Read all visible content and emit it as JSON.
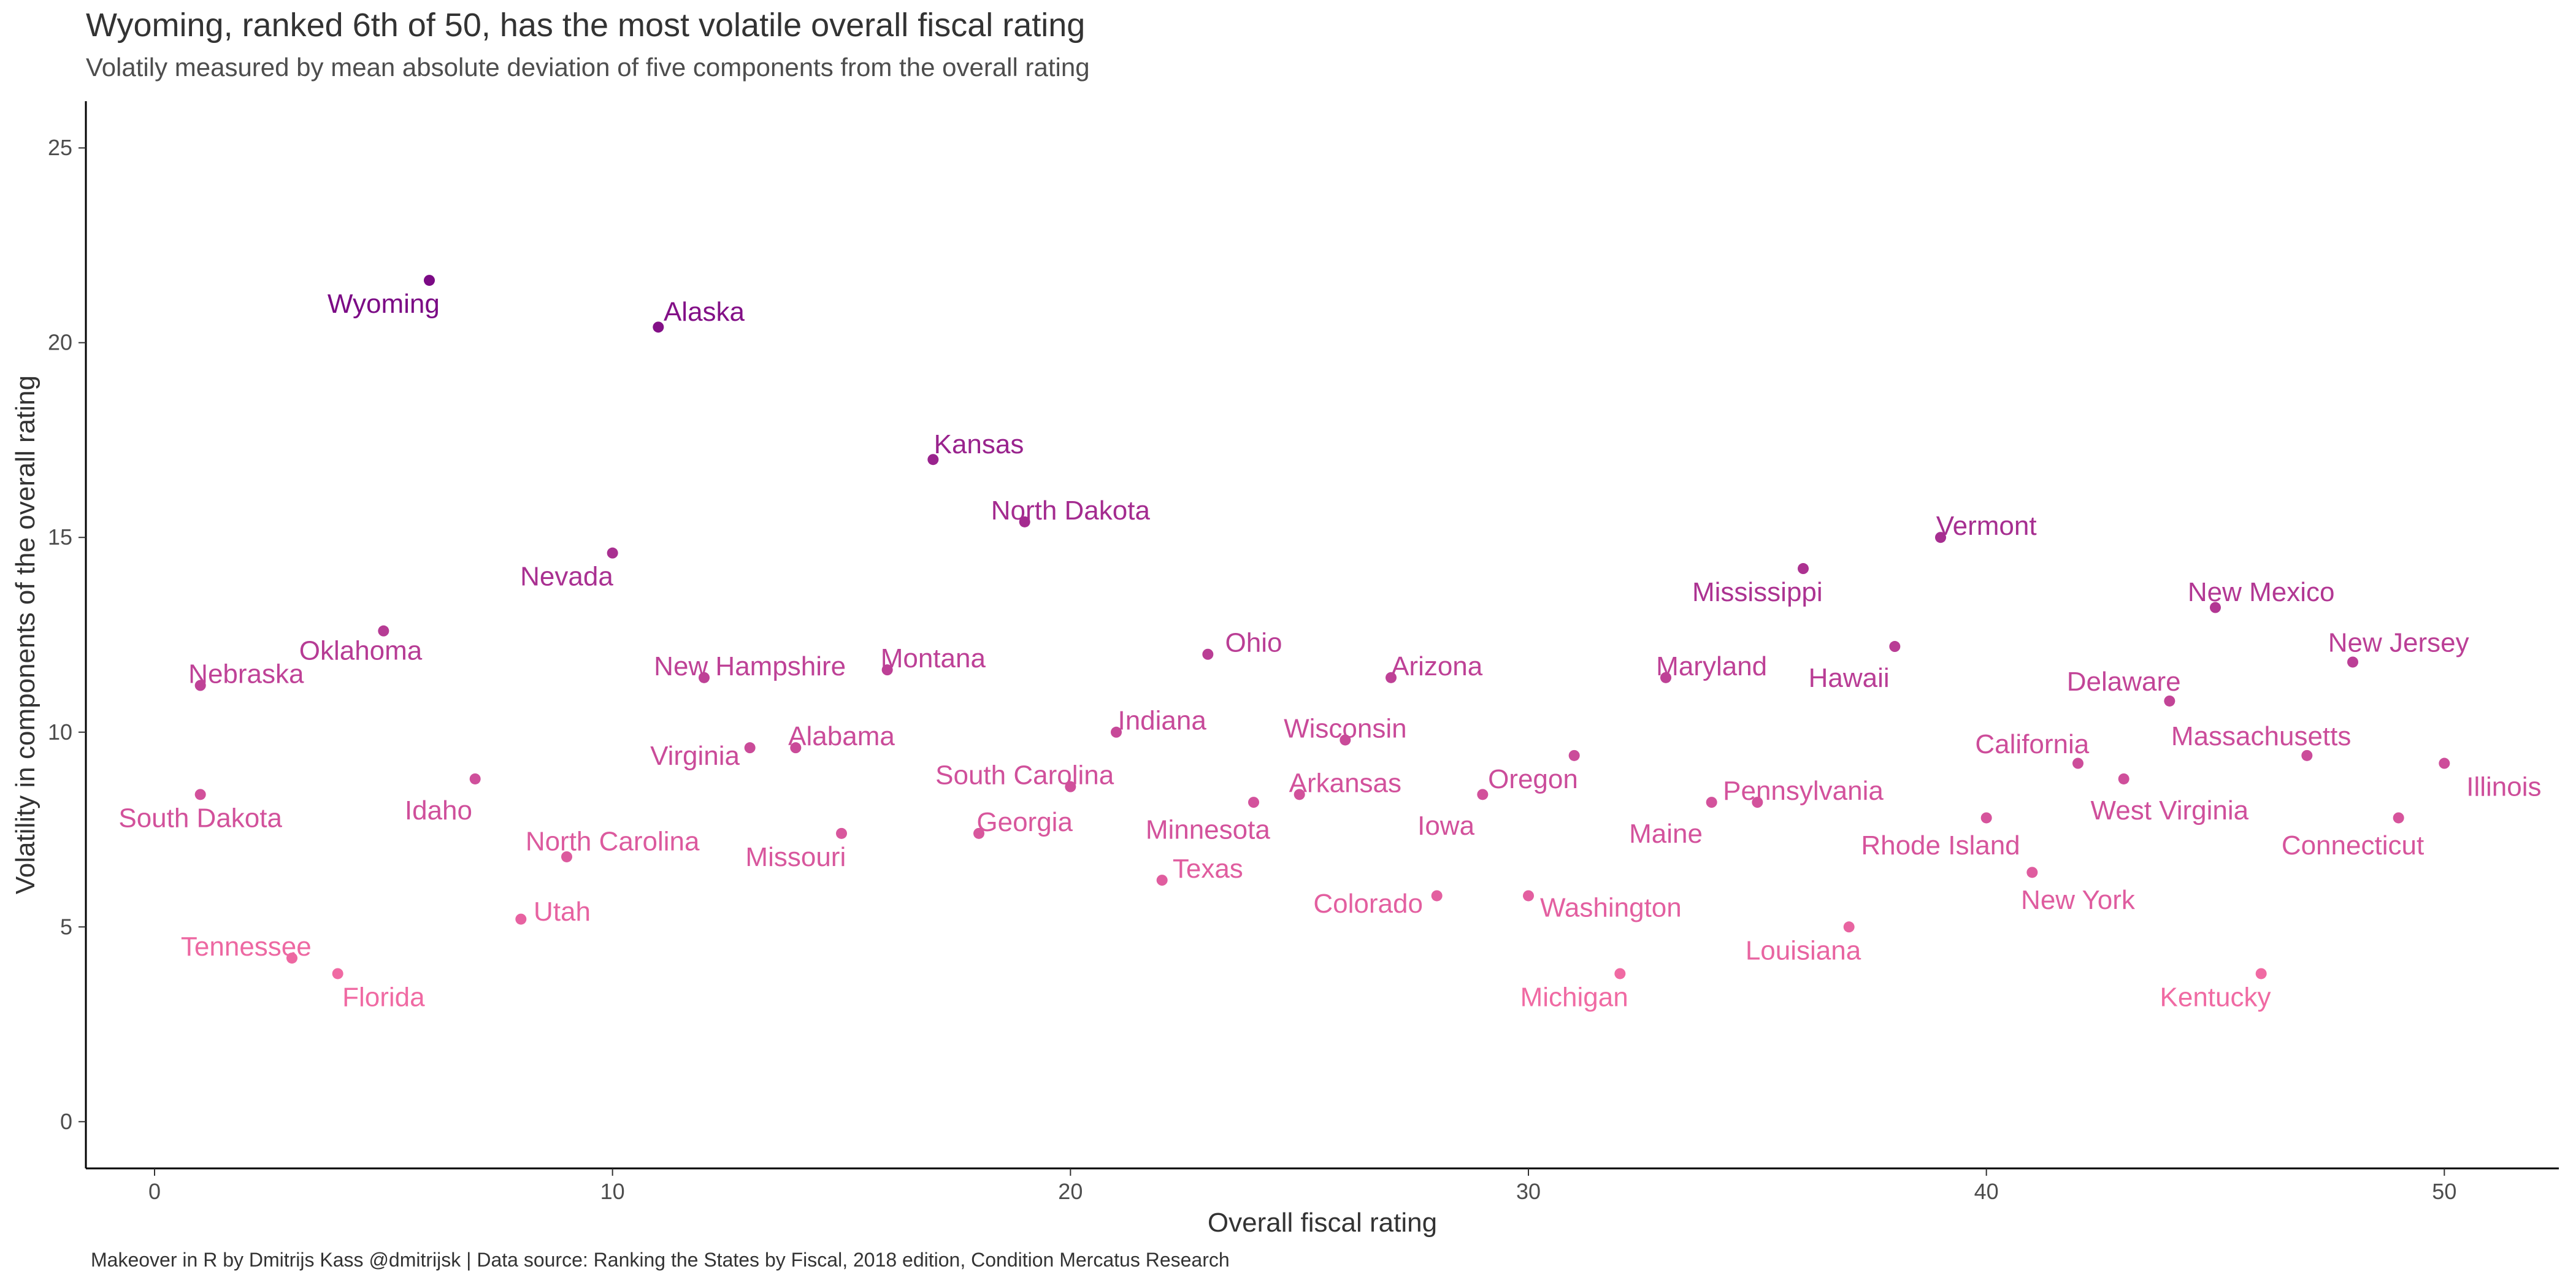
{
  "title": "Wyoming, ranked 6th of 50, has the most volatile overall fiscal rating",
  "subtitle": "Volatily measured by mean absolute deviation of five components from the overall rating",
  "caption": "Makeover in R by Dmitrijs Kass @dmitrijsk | Data source: Ranking the States by Fiscal, 2018 edition, Condition Mercatus Research",
  "colors": {
    "low": "#f06aa3",
    "high": "#7b0a85"
  },
  "chart_data": {
    "type": "scatter",
    "xlabel": "Overall fiscal rating",
    "ylabel": "Volatility in components of the overall rating",
    "xlim": [
      -1.5,
      52.5
    ],
    "ylim": [
      -1.2,
      26.2
    ],
    "xticks": [
      0,
      10,
      20,
      30,
      40,
      50
    ],
    "yticks": [
      0,
      5,
      10,
      15,
      20,
      25
    ],
    "grid": false,
    "legend": "none",
    "points": [
      {
        "label": "South Dakota",
        "x": 1,
        "y": 8.4,
        "lx": 1,
        "ly": 7.8,
        "anchor": "middle"
      },
      {
        "label": "Nebraska",
        "x": 1,
        "y": 11.2,
        "lx": 2,
        "ly": 11.5,
        "anchor": "middle"
      },
      {
        "label": "Tennessee",
        "x": 3,
        "y": 4.2,
        "lx": 2,
        "ly": 4.5,
        "anchor": "middle"
      },
      {
        "label": "Florida",
        "x": 4,
        "y": 3.8,
        "lx": 5,
        "ly": 3.2,
        "anchor": "middle"
      },
      {
        "label": "Oklahoma",
        "x": 5,
        "y": 12.6,
        "lx": 4.5,
        "ly": 12.1,
        "anchor": "middle"
      },
      {
        "label": "Wyoming",
        "x": 6,
        "y": 21.6,
        "lx": 5,
        "ly": 21.0,
        "anchor": "middle"
      },
      {
        "label": "Idaho",
        "x": 7,
        "y": 8.8,
        "lx": 6.2,
        "ly": 8.0,
        "anchor": "middle"
      },
      {
        "label": "Utah",
        "x": 8,
        "y": 5.2,
        "lx": 8.9,
        "ly": 5.4,
        "anchor": "middle"
      },
      {
        "label": "North Carolina",
        "x": 9,
        "y": 6.8,
        "lx": 10,
        "ly": 7.2,
        "anchor": "middle"
      },
      {
        "label": "Nevada",
        "x": 10,
        "y": 14.6,
        "lx": 9,
        "ly": 14.0,
        "anchor": "middle"
      },
      {
        "label": "Alaska",
        "x": 11,
        "y": 20.4,
        "lx": 12,
        "ly": 20.8,
        "anchor": "middle"
      },
      {
        "label": "New Hampshire",
        "x": 12,
        "y": 11.4,
        "lx": 13,
        "ly": 11.7,
        "anchor": "middle"
      },
      {
        "label": "Virginia",
        "x": 13,
        "y": 9.6,
        "lx": 11.8,
        "ly": 9.4,
        "anchor": "middle"
      },
      {
        "label": "Alabama",
        "x": 14,
        "y": 9.6,
        "lx": 15,
        "ly": 9.9,
        "anchor": "middle"
      },
      {
        "label": "Missouri",
        "x": 15,
        "y": 7.4,
        "lx": 14,
        "ly": 6.8,
        "anchor": "middle"
      },
      {
        "label": "Montana",
        "x": 16,
        "y": 11.6,
        "lx": 17,
        "ly": 11.9,
        "anchor": "middle"
      },
      {
        "label": "Kansas",
        "x": 17,
        "y": 17.0,
        "lx": 18,
        "ly": 17.4,
        "anchor": "middle"
      },
      {
        "label": "Georgia",
        "x": 18,
        "y": 7.4,
        "lx": 19,
        "ly": 7.7,
        "anchor": "middle"
      },
      {
        "label": "North Dakota",
        "x": 19,
        "y": 15.4,
        "lx": 20,
        "ly": 15.7,
        "anchor": "middle"
      },
      {
        "label": "South Carolina",
        "x": 20,
        "y": 8.6,
        "lx": 19,
        "ly": 8.9,
        "anchor": "middle"
      },
      {
        "label": "Indiana",
        "x": 21,
        "y": 10.0,
        "lx": 22,
        "ly": 10.3,
        "anchor": "middle"
      },
      {
        "label": "Texas",
        "x": 22,
        "y": 6.2,
        "lx": 23,
        "ly": 6.5,
        "anchor": "middle"
      },
      {
        "label": "Ohio",
        "x": 23,
        "y": 12.0,
        "lx": 24,
        "ly": 12.3,
        "anchor": "middle"
      },
      {
        "label": "Minnesota",
        "x": 24,
        "y": 8.2,
        "lx": 23,
        "ly": 7.5,
        "anchor": "middle"
      },
      {
        "label": "Arkansas",
        "x": 25,
        "y": 8.4,
        "lx": 26,
        "ly": 8.7,
        "anchor": "middle"
      },
      {
        "label": "Wisconsin",
        "x": 26,
        "y": 9.8,
        "lx": 26,
        "ly": 10.1,
        "anchor": "middle"
      },
      {
        "label": "Arizona",
        "x": 27,
        "y": 11.4,
        "lx": 28,
        "ly": 11.7,
        "anchor": "middle"
      },
      {
        "label": "Colorado",
        "x": 28,
        "y": 5.8,
        "lx": 26.5,
        "ly": 5.6,
        "anchor": "middle"
      },
      {
        "label": "Iowa",
        "x": 29,
        "y": 8.4,
        "lx": 28.2,
        "ly": 7.6,
        "anchor": "middle"
      },
      {
        "label": "Washington",
        "x": 30,
        "y": 5.8,
        "lx": 31.8,
        "ly": 5.5,
        "anchor": "middle"
      },
      {
        "label": "Oregon",
        "x": 31,
        "y": 9.4,
        "lx": 30.1,
        "ly": 8.8,
        "anchor": "middle"
      },
      {
        "label": "Michigan",
        "x": 32,
        "y": 3.8,
        "lx": 31,
        "ly": 3.2,
        "anchor": "middle"
      },
      {
        "label": "Maryland",
        "x": 33,
        "y": 11.4,
        "lx": 34,
        "ly": 11.7,
        "anchor": "middle"
      },
      {
        "label": "Maine",
        "x": 34,
        "y": 8.2,
        "lx": 33,
        "ly": 7.4,
        "anchor": "middle"
      },
      {
        "label": "Pennsylvania",
        "x": 35,
        "y": 8.2,
        "lx": 36,
        "ly": 8.5,
        "anchor": "middle"
      },
      {
        "label": "Mississippi",
        "x": 36,
        "y": 14.2,
        "lx": 35,
        "ly": 13.6,
        "anchor": "middle"
      },
      {
        "label": "Louisiana",
        "x": 37,
        "y": 5.0,
        "lx": 36,
        "ly": 4.4,
        "anchor": "middle"
      },
      {
        "label": "Hawaii",
        "x": 38,
        "y": 12.2,
        "lx": 37,
        "ly": 11.4,
        "anchor": "middle"
      },
      {
        "label": "Vermont",
        "x": 39,
        "y": 15.0,
        "lx": 40,
        "ly": 15.3,
        "anchor": "middle"
      },
      {
        "label": "Rhode Island",
        "x": 40,
        "y": 7.8,
        "lx": 39,
        "ly": 7.1,
        "anchor": "middle"
      },
      {
        "label": "New York",
        "x": 41,
        "y": 6.4,
        "lx": 42,
        "ly": 5.7,
        "anchor": "middle"
      },
      {
        "label": "California",
        "x": 42,
        "y": 9.2,
        "lx": 41,
        "ly": 9.7,
        "anchor": "middle"
      },
      {
        "label": "West Virginia",
        "x": 43,
        "y": 8.8,
        "lx": 44,
        "ly": 8.0,
        "anchor": "middle"
      },
      {
        "label": "Delaware",
        "x": 44,
        "y": 10.8,
        "lx": 43,
        "ly": 11.3,
        "anchor": "middle"
      },
      {
        "label": "New Mexico",
        "x": 45,
        "y": 13.2,
        "lx": 46,
        "ly": 13.6,
        "anchor": "middle"
      },
      {
        "label": "Kentucky",
        "x": 46,
        "y": 3.8,
        "lx": 45,
        "ly": 3.2,
        "anchor": "middle"
      },
      {
        "label": "Massachusetts",
        "x": 47,
        "y": 9.4,
        "lx": 46,
        "ly": 9.9,
        "anchor": "middle"
      },
      {
        "label": "New Jersey",
        "x": 48,
        "y": 11.8,
        "lx": 49,
        "ly": 12.3,
        "anchor": "middle"
      },
      {
        "label": "Connecticut",
        "x": 49,
        "y": 7.8,
        "lx": 48,
        "ly": 7.1,
        "anchor": "middle"
      },
      {
        "label": "Illinois",
        "x": 50,
        "y": 9.2,
        "lx": 51.3,
        "ly": 8.6,
        "anchor": "middle"
      }
    ]
  }
}
